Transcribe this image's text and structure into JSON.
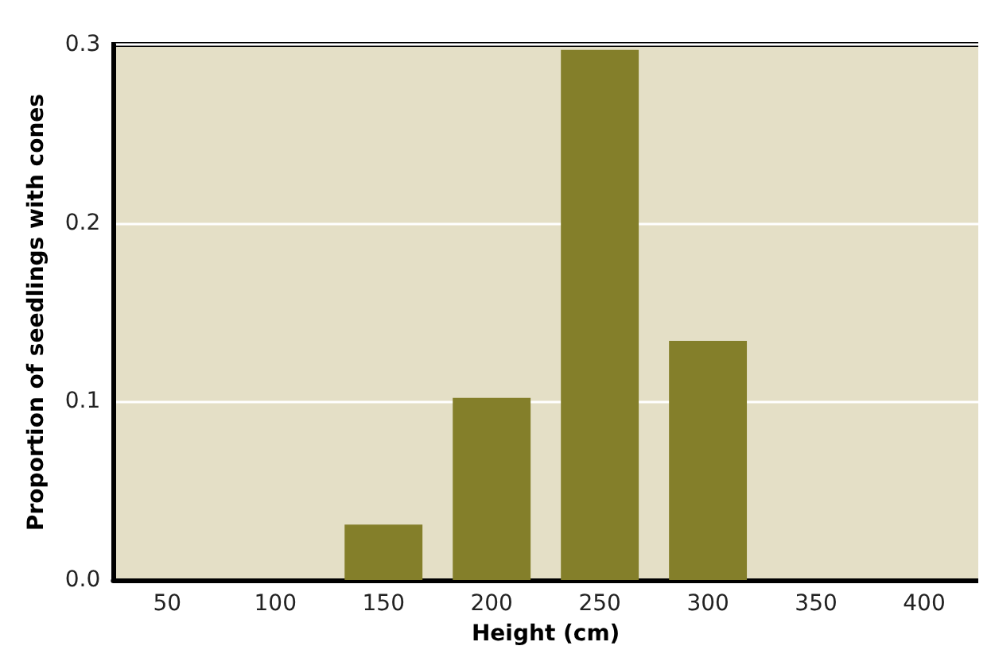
{
  "chart_data": {
    "type": "bar",
    "xlabel": "Height (cm)",
    "ylabel": "Proportion of seedlings with cones",
    "categories": [
      "50",
      "100",
      "150",
      "200",
      "250",
      "300",
      "350",
      "400"
    ],
    "values": [
      0,
      0,
      0.031,
      0.102,
      0.297,
      0.134,
      0,
      0
    ],
    "color": "#847f2a",
    "ylim": [
      0,
      0.3
    ],
    "yticks": [
      {
        "value": 0,
        "label": "0.0"
      },
      {
        "value": 0.1,
        "label": "0.1"
      },
      {
        "value": 0.2,
        "label": "0.2"
      },
      {
        "value": 0.3,
        "label": "0.3"
      }
    ],
    "grid": "y"
  }
}
